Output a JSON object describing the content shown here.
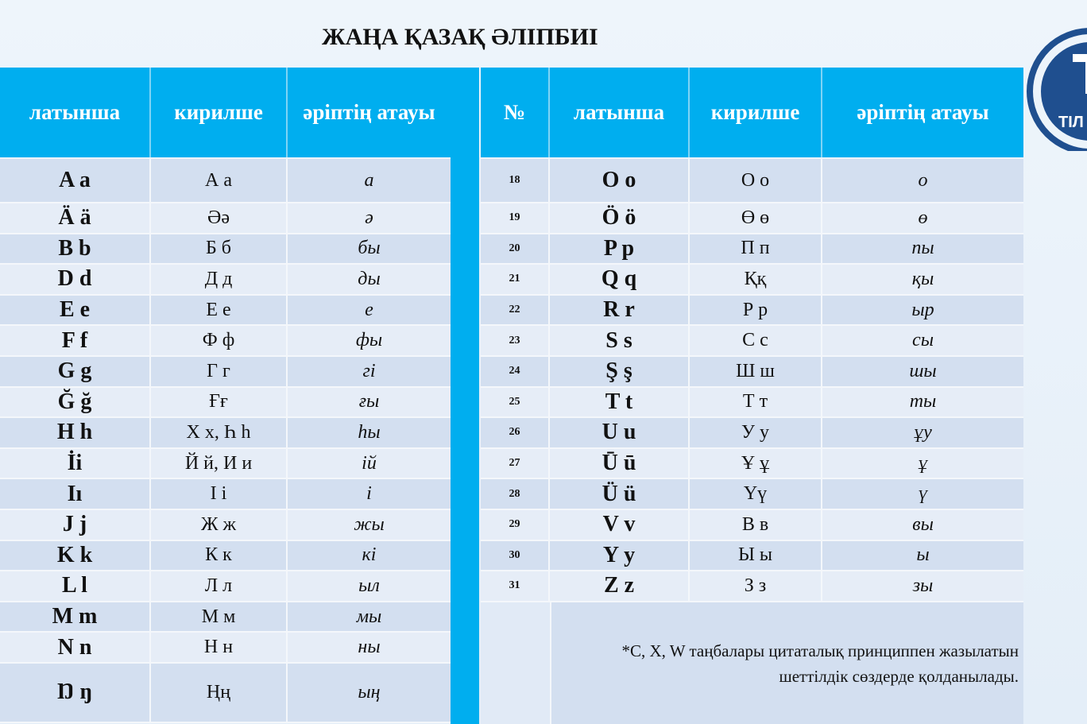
{
  "title": "ЖАҢА ҚАЗАҚ ӘЛІПБИІ",
  "logo_text": "АХМЕТ БАЙТҰРСЫНҰЛЫ ТІЛ",
  "left_table": {
    "headers": [
      "латынша",
      "кирилше",
      "әріптің атауы"
    ],
    "rows": [
      [
        "A a",
        "А а",
        "а"
      ],
      [
        "Ä ä",
        "Әә",
        "ә"
      ],
      [
        "B b",
        "Б б",
        "бы"
      ],
      [
        "D d",
        "Д д",
        "ды"
      ],
      [
        "E e",
        "Е е",
        "е"
      ],
      [
        "F f",
        "Ф ф",
        "фы"
      ],
      [
        "G g",
        "Г г",
        "гі"
      ],
      [
        "Ğ ğ",
        "Ғғ",
        "ғы"
      ],
      [
        "H h",
        "Х х, Һ һ",
        "һы"
      ],
      [
        "İi",
        "Й й, И и",
        "ій"
      ],
      [
        "Iı",
        "І і",
        "і"
      ],
      [
        "J j",
        "Ж ж",
        "жы"
      ],
      [
        "K k",
        "К к",
        "кі"
      ],
      [
        "L l",
        "Л л",
        "ыл"
      ],
      [
        "M m",
        "М м",
        "мы"
      ],
      [
        "N n",
        "Н н",
        "ны"
      ],
      [
        "Ŋ ŋ",
        "Ңң",
        "ың"
      ]
    ]
  },
  "right_table": {
    "headers": [
      "№",
      "латынша",
      "кирилше",
      "әріптің атауы"
    ],
    "rows": [
      [
        "18",
        "O o",
        "О о",
        "о"
      ],
      [
        "19",
        "Ö ö",
        "Ө ө",
        "ө"
      ],
      [
        "20",
        "P p",
        "П п",
        "пы"
      ],
      [
        "21",
        "Q q",
        "Ққ",
        "қы"
      ],
      [
        "22",
        "R r",
        "Р р",
        "ыр"
      ],
      [
        "23",
        "S s",
        "С с",
        "сы"
      ],
      [
        "24",
        "Ş ş",
        "Ш ш",
        "шы"
      ],
      [
        "25",
        "T t",
        "Т т",
        "ты"
      ],
      [
        "26",
        "U u",
        "У у",
        "ұу"
      ],
      [
        "27",
        "Ū ū",
        "Ұ ұ",
        "ұ"
      ],
      [
        "28",
        "Ü ü",
        "Үү",
        "ү"
      ],
      [
        "29",
        "V v",
        "В в",
        "вы"
      ],
      [
        "30",
        "Y y",
        "Ы ы",
        "ы"
      ],
      [
        "31",
        "Z z",
        "З з",
        "зы"
      ]
    ]
  },
  "note_line1": "*C, X, W таңбалары цитаталық принциппен жазылатын",
  "note_line2": "шеттілдік  сөздерде қолданылады.",
  "colors": {
    "header": "#00aeef",
    "row_dark": "#d3dff0",
    "row_light": "#e6edf7",
    "logo": "#1f4f8f"
  }
}
